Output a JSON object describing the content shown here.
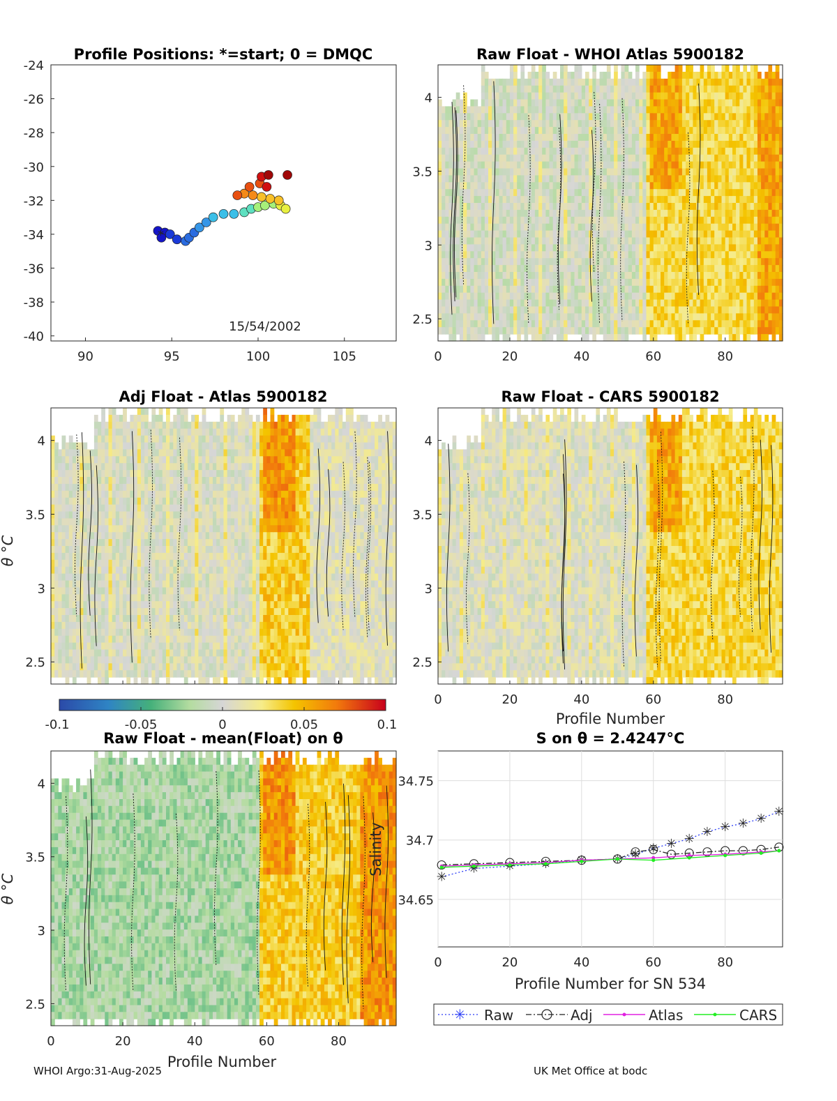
{
  "panels": {
    "positions": {
      "title": "Profile Positions: *=start; 0 = DMQC",
      "date_label": "15/54/2002",
      "xticks": [
        "90",
        "95",
        "100",
        "105"
      ],
      "yticks": [
        "-24",
        "-26",
        "-28",
        "-30",
        "-32",
        "-34",
        "-36",
        "-38",
        "-40"
      ]
    },
    "raw_whoi": {
      "title": "Raw Float - WHOI Atlas  5900182"
    },
    "adj_atlas": {
      "title": "Adj Float - Atlas  5900182",
      "ylabel": "θ °C"
    },
    "raw_cars": {
      "title": "Raw Float - CARS  5900182",
      "xlabel": "Profile Number"
    },
    "raw_mean": {
      "title": "Raw Float - mean(Float) on θ",
      "ylabel": "θ °C",
      "xlabel": "Profile Number"
    },
    "s_on_theta": {
      "title": "S on θ = 2.4247°C",
      "ylabel": "Salinity",
      "xlabel": "Profile Number for SN 534"
    }
  },
  "axes": {
    "profile_ticks": [
      "0",
      "20",
      "40",
      "60",
      "80"
    ],
    "theta_ticks": [
      "4",
      "3.5",
      "3",
      "2.5"
    ],
    "salinity_ticks": [
      "34.75",
      "34.7",
      "34.65"
    ]
  },
  "colorbar": {
    "ticks": [
      "-0.1",
      "-0.05",
      "0",
      "0.05",
      "0.1"
    ]
  },
  "legend": {
    "raw": "Raw",
    "adj": "Adj",
    "atlas": "Atlas",
    "cars": "CARS"
  },
  "footer": {
    "left": "WHOI Argo:31-Aug-2025",
    "right": "UK Met Office at bodc"
  },
  "colors": {
    "raw": "#2a3cf5",
    "adj": "#222222",
    "atlas": "#e020e0",
    "cars": "#22ee22"
  },
  "chart_data": [
    {
      "type": "scatter",
      "title": "Profile Positions: *=start; 0 = DMQC",
      "xlim": [
        88,
        108
      ],
      "ylim": [
        -40.3,
        -24
      ],
      "points": [
        [
          94.2,
          -33.8
        ],
        [
          94.6,
          -33.9
        ],
        [
          94.4,
          -34.2
        ],
        [
          94.9,
          -34.0
        ],
        [
          95.3,
          -34.3
        ],
        [
          95.8,
          -34.4
        ],
        [
          96.0,
          -34.2
        ],
        [
          96.3,
          -33.9
        ],
        [
          96.6,
          -33.6
        ],
        [
          97.0,
          -33.3
        ],
        [
          97.4,
          -33.0
        ],
        [
          98.0,
          -32.8
        ],
        [
          98.6,
          -32.8
        ],
        [
          99.2,
          -32.7
        ],
        [
          99.6,
          -32.5
        ],
        [
          100.0,
          -32.4
        ],
        [
          100.4,
          -32.3
        ],
        [
          100.9,
          -32.2
        ],
        [
          101.3,
          -32.3
        ],
        [
          101.6,
          -32.5
        ],
        [
          101.2,
          -32.0
        ],
        [
          100.7,
          -31.9
        ],
        [
          100.2,
          -31.8
        ],
        [
          99.7,
          -31.7
        ],
        [
          99.2,
          -31.6
        ],
        [
          98.8,
          -31.7
        ],
        [
          99.5,
          -31.2
        ],
        [
          100.1,
          -31.0
        ],
        [
          100.5,
          -31.2
        ],
        [
          100.2,
          -30.6
        ],
        [
          100.6,
          -30.5
        ],
        [
          101.7,
          -30.5
        ]
      ]
    },
    {
      "type": "heatmap",
      "title": "Raw Float - WHOI Atlas  5900182",
      "xlim": [
        0,
        96
      ],
      "ylim": [
        2.35,
        4.22
      ],
      "colorbar_range": [
        -0.1,
        0.1
      ]
    },
    {
      "type": "heatmap",
      "title": "Adj Float - Atlas  5900182",
      "xlim": [
        0,
        96
      ],
      "ylim": [
        2.35,
        4.22
      ],
      "colorbar_range": [
        -0.1,
        0.1
      ]
    },
    {
      "type": "heatmap",
      "title": "Raw Float - CARS  5900182",
      "xlim": [
        0,
        96
      ],
      "ylim": [
        2.35,
        4.22
      ],
      "colorbar_range": [
        -0.1,
        0.1
      ]
    },
    {
      "type": "heatmap",
      "title": "Raw Float - mean(Float) on θ",
      "xlim": [
        0,
        96
      ],
      "ylim": [
        2.35,
        4.22
      ],
      "colorbar_range": [
        -0.1,
        0.1
      ]
    },
    {
      "type": "line",
      "title": "S on θ = 2.4247°C",
      "xlabel": "Profile Number for SN 534",
      "ylabel": "Salinity",
      "xlim": [
        0,
        96
      ],
      "ylim": [
        34.61,
        34.775
      ],
      "series": [
        {
          "name": "Raw",
          "values": [
            [
              1,
              34.669
            ],
            [
              10,
              34.676
            ],
            [
              20,
              34.678
            ],
            [
              30,
              34.68
            ],
            [
              40,
              34.683
            ],
            [
              50,
              34.684
            ],
            [
              55,
              34.688
            ],
            [
              60,
              34.693
            ],
            [
              65,
              34.697
            ],
            [
              70,
              34.701
            ],
            [
              75,
              34.707
            ],
            [
              80,
              34.711
            ],
            [
              85,
              34.714
            ],
            [
              90,
              34.718
            ],
            [
              95,
              34.724
            ]
          ]
        },
        {
          "name": "Adj",
          "values": [
            [
              1,
              34.679
            ],
            [
              10,
              34.68
            ],
            [
              20,
              34.681
            ],
            [
              30,
              34.682
            ],
            [
              40,
              34.683
            ],
            [
              50,
              34.684
            ],
            [
              55,
              34.69
            ],
            [
              60,
              34.692
            ],
            [
              65,
              34.688
            ],
            [
              70,
              34.689
            ],
            [
              75,
              34.69
            ],
            [
              80,
              34.691
            ],
            [
              85,
              34.691
            ],
            [
              90,
              34.692
            ],
            [
              95,
              34.694
            ]
          ]
        },
        {
          "name": "Atlas",
          "values": [
            [
              1,
              34.678
            ],
            [
              10,
              34.679
            ],
            [
              20,
              34.68
            ],
            [
              30,
              34.681
            ],
            [
              40,
              34.683
            ],
            [
              50,
              34.684
            ],
            [
              60,
              34.685
            ],
            [
              70,
              34.687
            ],
            [
              80,
              34.688
            ],
            [
              90,
              34.69
            ],
            [
              95,
              34.691
            ]
          ]
        },
        {
          "name": "CARS",
          "values": [
            [
              1,
              34.677
            ],
            [
              10,
              34.678
            ],
            [
              20,
              34.679
            ],
            [
              30,
              34.68
            ],
            [
              40,
              34.682
            ],
            [
              50,
              34.684
            ],
            [
              60,
              34.683
            ],
            [
              70,
              34.685
            ],
            [
              80,
              34.687
            ],
            [
              90,
              34.689
            ],
            [
              95,
              34.691
            ]
          ]
        }
      ]
    }
  ]
}
